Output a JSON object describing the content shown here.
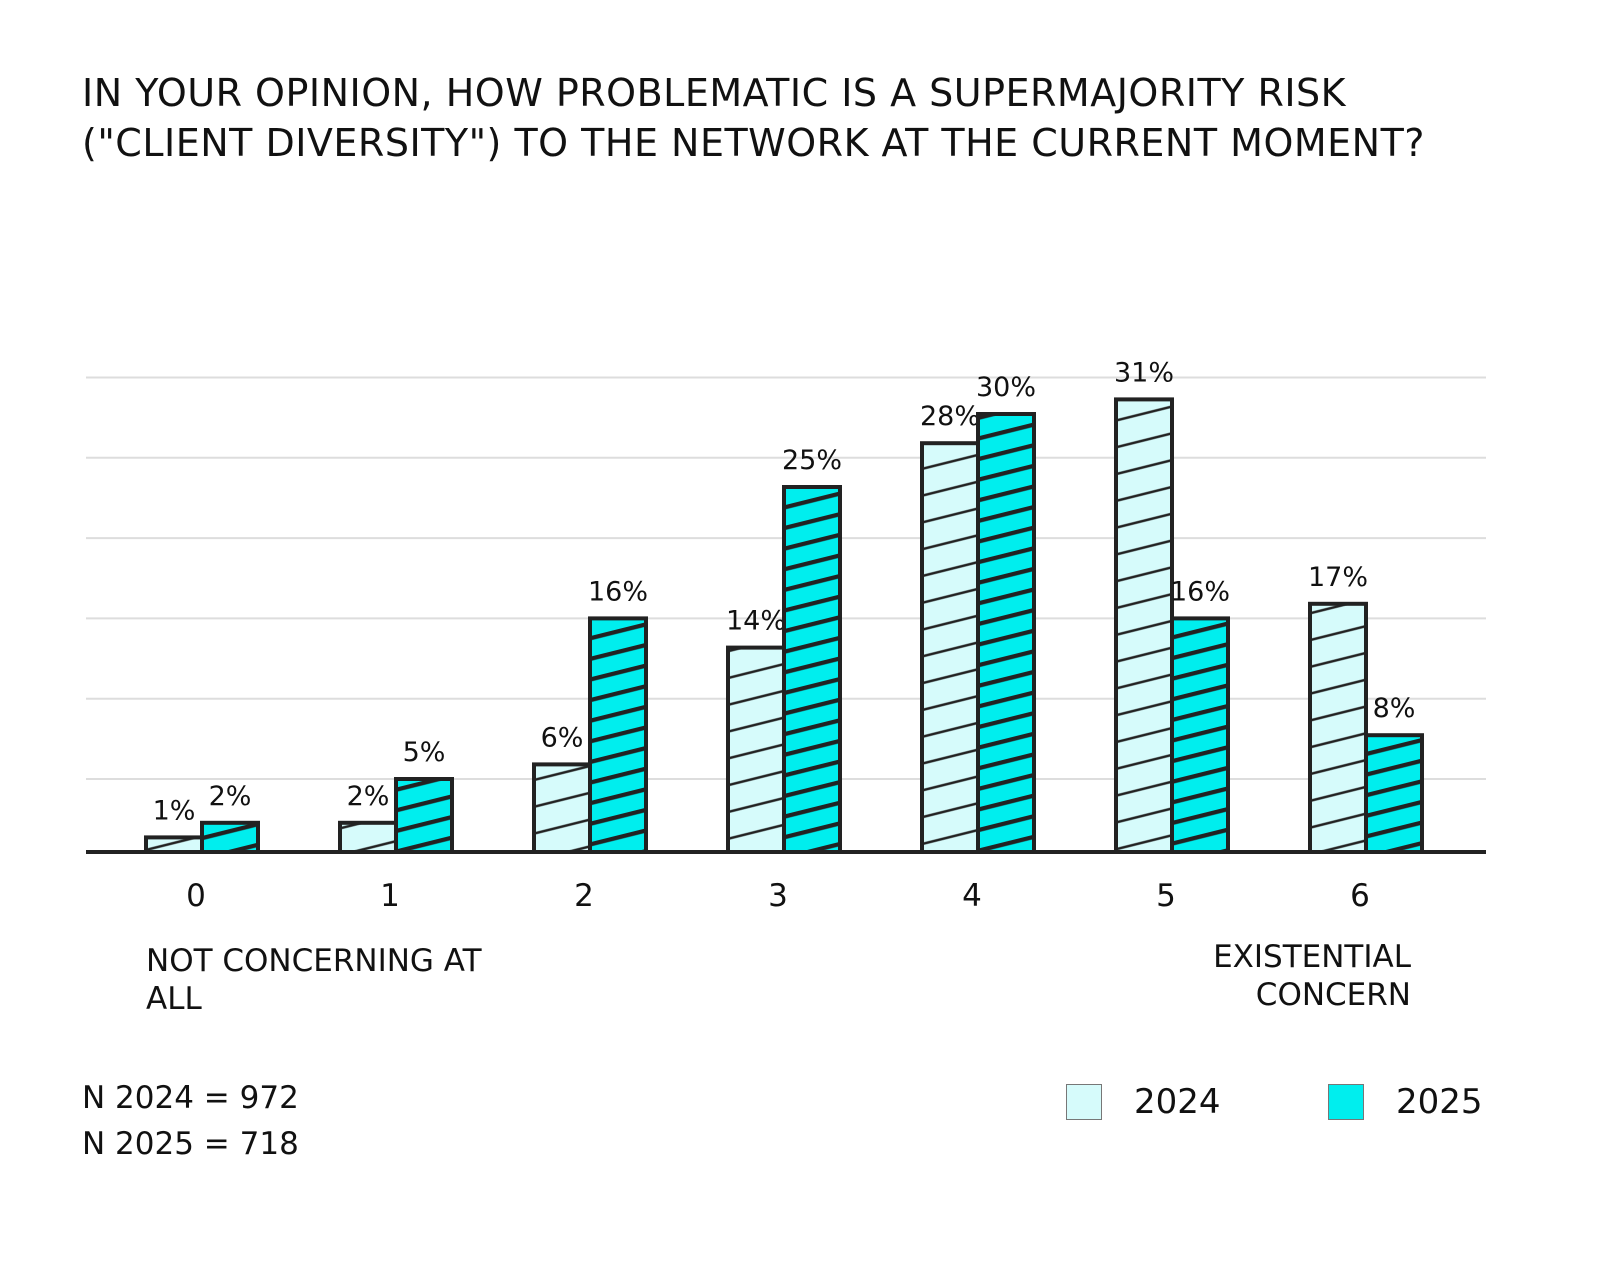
{
  "chart_data": {
    "type": "bar",
    "title": "In your opinion, how problematic is a supermajority risk (\"client diversity\") to the network at the current moment?",
    "categories": [
      "0",
      "1",
      "2",
      "3",
      "4",
      "5",
      "6"
    ],
    "series": [
      {
        "name": "2024",
        "values": [
          1,
          2,
          6,
          14,
          28,
          31,
          17
        ],
        "labels": [
          "1%",
          "2%",
          "6%",
          "14%",
          "28%",
          "31%",
          "17%"
        ],
        "color": "#d6fbfb"
      },
      {
        "name": "2025",
        "values": [
          2,
          5,
          16,
          25,
          30,
          16,
          8
        ],
        "labels": [
          "2%",
          "5%",
          "16%",
          "25%",
          "30%",
          "16%",
          "8%"
        ],
        "color": "#00eeee"
      }
    ],
    "ylim": [
      0,
      35
    ],
    "grid": true,
    "xlabel": "",
    "ylabel": "",
    "scale_min_label": "Not concerning at all",
    "scale_max_label": "Existential concern",
    "legend_position": "bottom-right"
  },
  "footer": {
    "n_2024": "N 2024 = 972",
    "n_2025": "N 2025 = 718"
  },
  "legend": {
    "label_2024": "2024",
    "label_2025": "2025"
  },
  "colors": {
    "bar_2024": "#d6fbfb",
    "bar_2025": "#00eeee",
    "outline": "#222222",
    "grid": "#dddddd"
  }
}
